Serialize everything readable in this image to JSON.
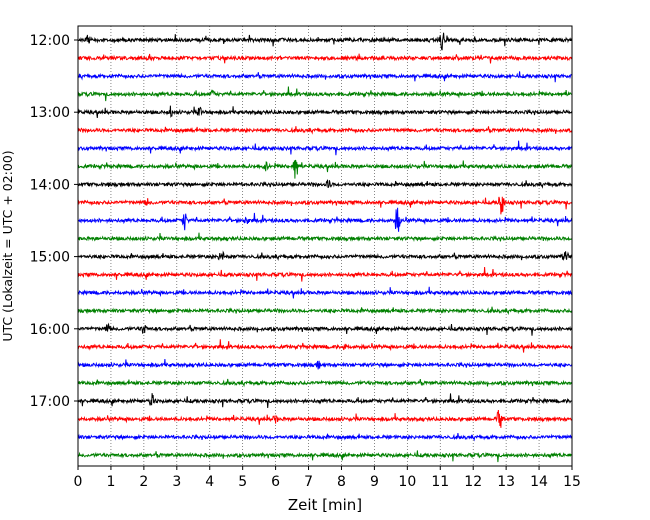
{
  "chart_data": {
    "type": "line",
    "title": "",
    "xlabel": "Zeit  [min]",
    "ylabel": "UTC (Lokalzeit = UTC + 02:00)",
    "xlim": [
      0,
      15
    ],
    "x_ticks": [
      "0",
      "1",
      "2",
      "3",
      "4",
      "5",
      "6",
      "7",
      "8",
      "9",
      "10",
      "11",
      "12",
      "13",
      "14",
      "15"
    ],
    "y_tick_labels": [
      "12:00",
      "13:00",
      "14:00",
      "15:00",
      "16:00",
      "17:00"
    ],
    "grid": "vertical dotted at each minute",
    "trace_colors": [
      "#000000",
      "#ff0000",
      "#0000ff",
      "#008000"
    ],
    "trace_count": 24,
    "trace_interval_min": 15,
    "first_trace": "12:00",
    "events": [
      {
        "trace": 0,
        "x": 11.05,
        "amp": 12
      },
      {
        "trace": 0,
        "x": 0.3,
        "amp": 5
      },
      {
        "trace": 3,
        "x": 4.1,
        "amp": 4
      },
      {
        "trace": 4,
        "x": 2.8,
        "amp": 6
      },
      {
        "trace": 4,
        "x": 3.7,
        "amp": 5
      },
      {
        "trace": 7,
        "x": 6.6,
        "amp": 16
      },
      {
        "trace": 7,
        "x": 5.7,
        "amp": 5
      },
      {
        "trace": 8,
        "x": 7.6,
        "amp": 5
      },
      {
        "trace": 9,
        "x": 12.85,
        "amp": 18
      },
      {
        "trace": 9,
        "x": 2.1,
        "amp": 4
      },
      {
        "trace": 10,
        "x": 3.25,
        "amp": 10
      },
      {
        "trace": 10,
        "x": 9.7,
        "amp": 16
      },
      {
        "trace": 10,
        "x": 5.1,
        "amp": 5
      },
      {
        "trace": 12,
        "x": 4.35,
        "amp": 7
      },
      {
        "trace": 12,
        "x": 14.8,
        "amp": 8
      },
      {
        "trace": 16,
        "x": 0.9,
        "amp": 5
      },
      {
        "trace": 16,
        "x": 2.0,
        "amp": 6
      },
      {
        "trace": 17,
        "x": 8.1,
        "amp": 4
      },
      {
        "trace": 18,
        "x": 7.3,
        "amp": 4
      },
      {
        "trace": 20,
        "x": 2.25,
        "amp": 7
      },
      {
        "trace": 21,
        "x": 12.8,
        "amp": 12
      },
      {
        "trace": 21,
        "x": 6.0,
        "amp": 4
      }
    ]
  }
}
